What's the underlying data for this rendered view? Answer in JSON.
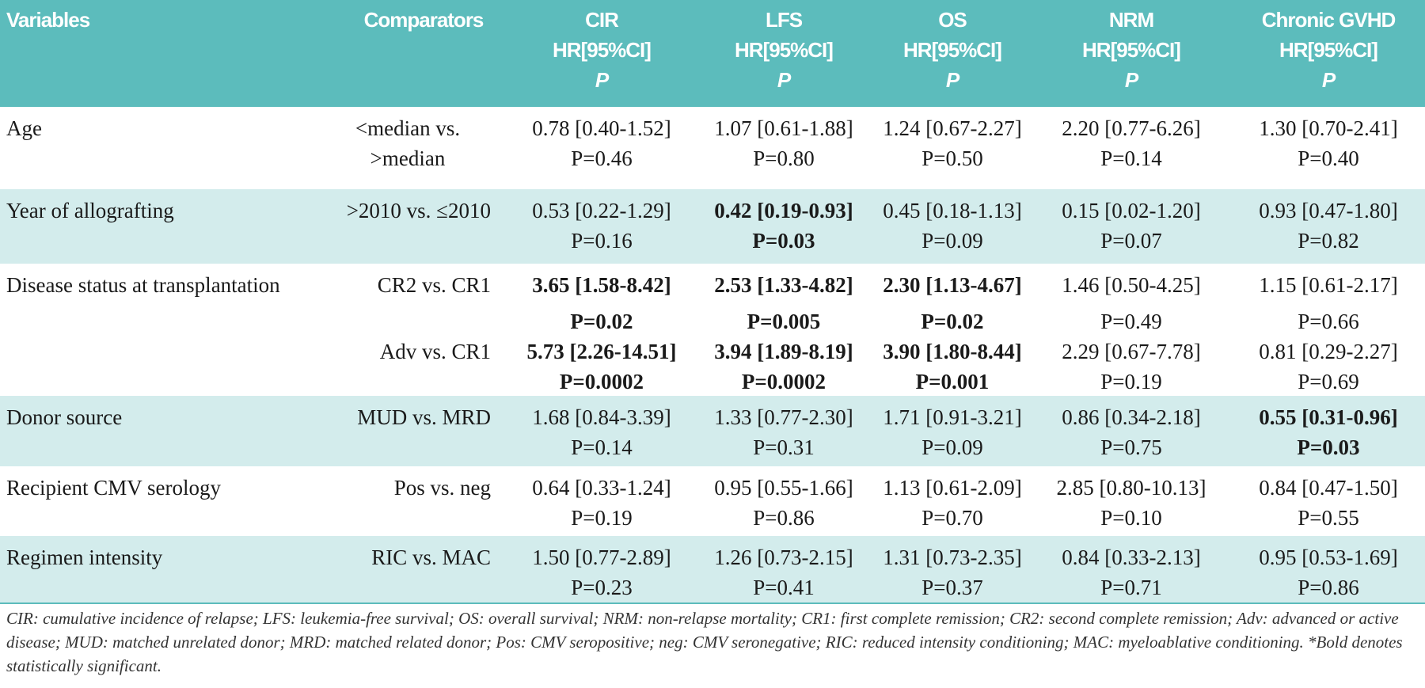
{
  "table": {
    "header": [
      {
        "lines": [
          "Variables"
        ]
      },
      {
        "lines": [
          "Comparators"
        ]
      },
      {
        "lines": [
          "CIR",
          "HR[95%CI]",
          "P"
        ]
      },
      {
        "lines": [
          "LFS",
          "HR[95%CI]",
          "P"
        ]
      },
      {
        "lines": [
          "OS",
          "HR[95%CI]",
          "P"
        ]
      },
      {
        "lines": [
          "NRM",
          "HR[95%CI]",
          "P"
        ]
      },
      {
        "lines": [
          "Chronic GVHD",
          "HR[95%CI]",
          "P"
        ]
      }
    ],
    "rows": [
      {
        "variable": "Age",
        "shaded": false,
        "entries": [
          {
            "comparator": [
              "<median vs.",
              ">median"
            ],
            "cells": [
              {
                "hr": "0.78 [0.40-1.52]",
                "p": "P=0.46",
                "bold": false
              },
              {
                "hr": "1.07 [0.61-1.88]",
                "p": "P=0.80",
                "bold": false
              },
              {
                "hr": "1.24 [0.67-2.27]",
                "p": "P=0.50",
                "bold": false
              },
              {
                "hr": "2.20 [0.77-6.26]",
                "p": "P=0.14",
                "bold": false
              },
              {
                "hr": "1.30 [0.70-2.41]",
                "p": "P=0.40",
                "bold": false
              }
            ]
          }
        ]
      },
      {
        "variable": "Year of allografting",
        "shaded": true,
        "entries": [
          {
            "comparator": [
              ">2010 vs. ≤2010"
            ],
            "cells": [
              {
                "hr": "0.53 [0.22-1.29]",
                "p": "P=0.16",
                "bold": false
              },
              {
                "hr": "0.42 [0.19-0.93]",
                "p": "P=0.03",
                "bold": true
              },
              {
                "hr": "0.45 [0.18-1.13]",
                "p": "P=0.09",
                "bold": false
              },
              {
                "hr": "0.15 [0.02-1.20]",
                "p": "P=0.07",
                "bold": false
              },
              {
                "hr": "0.93 [0.47-1.80]",
                "p": "P=0.82",
                "bold": false
              }
            ]
          }
        ]
      },
      {
        "variable": "Disease status at transplantation",
        "shaded": false,
        "entries": [
          {
            "comparator": [
              "CR2 vs. CR1"
            ],
            "cells": [
              {
                "hr": "3.65 [1.58-8.42]",
                "p": "P=0.02",
                "bold": true
              },
              {
                "hr": "2.53 [1.33-4.82]",
                "p": "P=0.005",
                "bold": true
              },
              {
                "hr": "2.30 [1.13-4.67]",
                "p": "P=0.02",
                "bold": true
              },
              {
                "hr": "1.46 [0.50-4.25]",
                "p": "P=0.49",
                "bold": false
              },
              {
                "hr": "1.15 [0.61-2.17]",
                "p": "P=0.66",
                "bold": false
              }
            ]
          },
          {
            "comparator": [
              "Adv vs. CR1"
            ],
            "cells": [
              {
                "hr": "5.73 [2.26-14.51]",
                "p": "P=0.0002",
                "bold": true
              },
              {
                "hr": "3.94 [1.89-8.19]",
                "p": "P=0.0002",
                "bold": true
              },
              {
                "hr": "3.90 [1.80-8.44]",
                "p": "P=0.001",
                "bold": true
              },
              {
                "hr": "2.29 [0.67-7.78]",
                "p": "P=0.19",
                "bold": false
              },
              {
                "hr": "0.81 [0.29-2.27]",
                "p": "P=0.69",
                "bold": false
              }
            ]
          }
        ]
      },
      {
        "variable": "Donor source",
        "shaded": true,
        "entries": [
          {
            "comparator": [
              "MUD vs. MRD"
            ],
            "cells": [
              {
                "hr": "1.68 [0.84-3.39]",
                "p": "P=0.14",
                "bold": false
              },
              {
                "hr": "1.33 [0.77-2.30]",
                "p": "P=0.31",
                "bold": false
              },
              {
                "hr": "1.71 [0.91-3.21]",
                "p": "P=0.09",
                "bold": false
              },
              {
                "hr": "0.86 [0.34-2.18]",
                "p": "P=0.75",
                "bold": false
              },
              {
                "hr": "0.55 [0.31-0.96]",
                "p": "P=0.03",
                "bold": true
              }
            ]
          }
        ]
      },
      {
        "variable": "Recipient CMV serology",
        "shaded": false,
        "entries": [
          {
            "comparator": [
              "Pos vs. neg"
            ],
            "cells": [
              {
                "hr": "0.64 [0.33-1.24]",
                "p": "P=0.19",
                "bold": false
              },
              {
                "hr": "0.95 [0.55-1.66]",
                "p": "P=0.86",
                "bold": false
              },
              {
                "hr": "1.13 [0.61-2.09]",
                "p": "P=0.70",
                "bold": false
              },
              {
                "hr": "2.85 [0.80-10.13]",
                "p": "P=0.10",
                "bold": false
              },
              {
                "hr": "0.84 [0.47-1.50]",
                "p": "P=0.55",
                "bold": false
              }
            ]
          }
        ]
      },
      {
        "variable": "Regimen intensity",
        "shaded": true,
        "entries": [
          {
            "comparator": [
              "RIC vs. MAC"
            ],
            "cells": [
              {
                "hr": "1.50 [0.77-2.89]",
                "p": "P=0.23",
                "bold": false
              },
              {
                "hr": "1.26 [0.73-2.15]",
                "p": "P=0.41",
                "bold": false
              },
              {
                "hr": "1.31 [0.73-2.35]",
                "p": "P=0.37",
                "bold": false
              },
              {
                "hr": "0.84 [0.33-2.13]",
                "p": "P=0.71",
                "bold": false
              },
              {
                "hr": "0.95 [0.53-1.69]",
                "p": "P=0.86",
                "bold": false
              }
            ]
          }
        ]
      }
    ],
    "footnote": "CIR: cumulative incidence of relapse; LFS: leukemia-free survival; OS: overall survival; NRM: non-relapse mortality; CR1: first complete remission; CR2: second complete remission; Adv: advanced or active disease; MUD: matched unrelated donor; MRD: matched related donor; Pos: CMV seropositive; neg: CMV seronegative; RIC: reduced intensity conditioning; MAC: myeloablative conditioning. *Bold denotes statistically significant."
  }
}
